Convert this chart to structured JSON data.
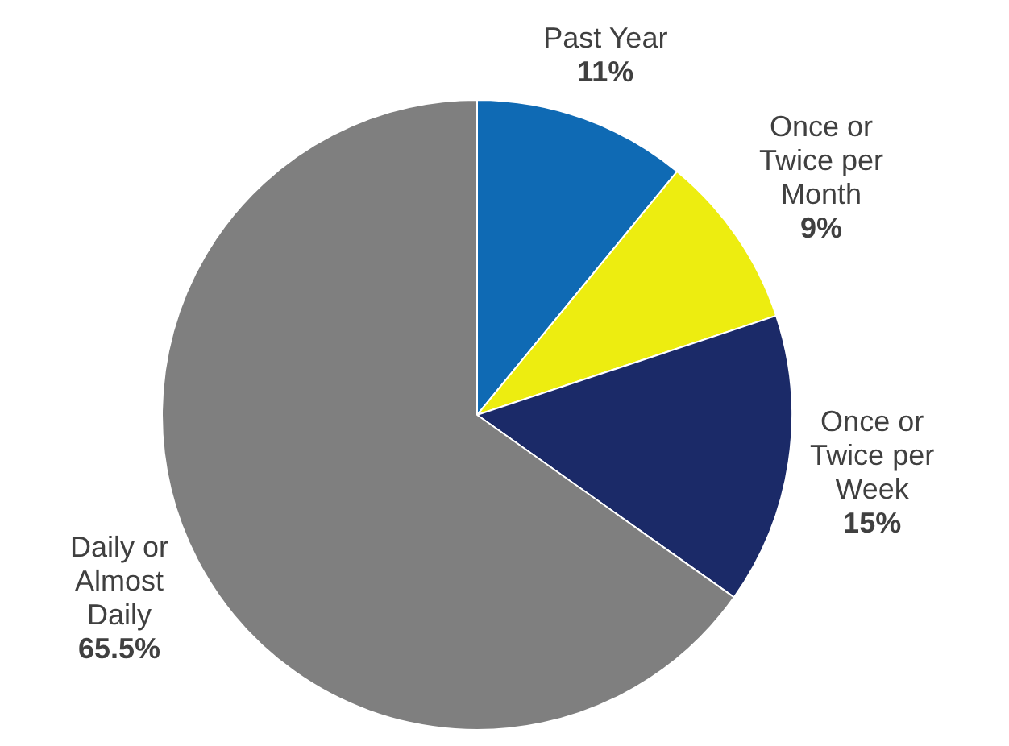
{
  "chart_data": {
    "type": "pie",
    "categories": [
      "Past Year",
      "Once or Twice per Month",
      "Once or Twice per Week",
      "Daily or Almost Daily"
    ],
    "values": [
      11,
      9,
      15,
      65.5
    ],
    "colors": [
      "#0f6ab4",
      "#eded10",
      "#1b2a68",
      "#7f7f7f"
    ],
    "value_labels": [
      "11%",
      "9%",
      "15%",
      "65.5%"
    ],
    "legend": false
  }
}
